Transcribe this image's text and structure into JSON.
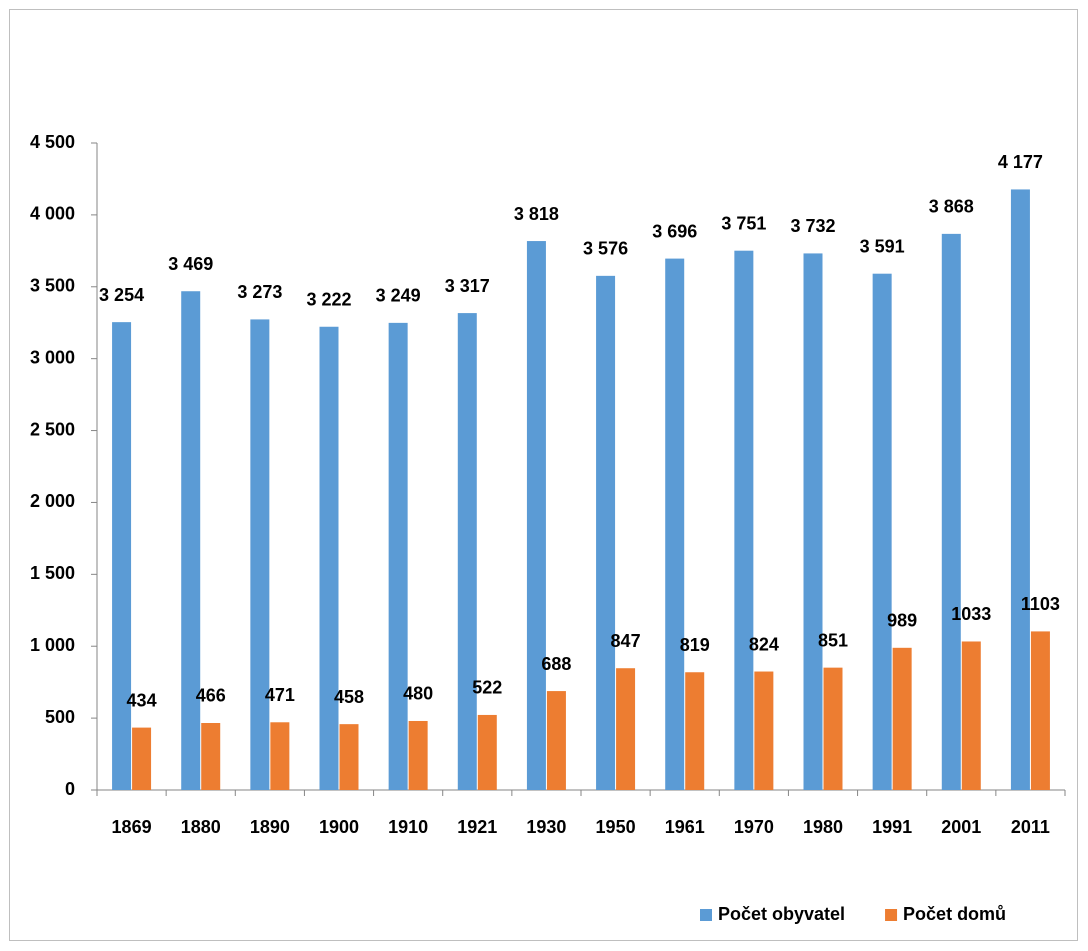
{
  "chart_data": {
    "type": "bar",
    "categories": [
      "1869",
      "1880",
      "1890",
      "1900",
      "1910",
      "1921",
      "1930",
      "1950",
      "1961",
      "1970",
      "1980",
      "1991",
      "2001",
      "2011"
    ],
    "series": [
      {
        "name": "Počet obyvatel",
        "color": "#5b9bd5",
        "values": [
          3254,
          3469,
          3273,
          3222,
          3249,
          3317,
          3818,
          3576,
          3696,
          3751,
          3732,
          3591,
          3868,
          4177
        ],
        "value_labels": [
          "3 254",
          "3 469",
          "3 273",
          "3 222",
          "3 249",
          "3 317",
          "3 818",
          "3 576",
          "3 696",
          "3 751",
          "3 732",
          "3 591",
          "3 868",
          "4 177"
        ]
      },
      {
        "name": "Počet domů",
        "color": "#ed7d31",
        "values": [
          434,
          466,
          471,
          458,
          480,
          522,
          688,
          847,
          819,
          824,
          851,
          989,
          1033,
          1103
        ]
      }
    ],
    "ylim": [
      0,
      4500
    ],
    "yticks": [
      0,
      500,
      {
        "value": 1000,
        "label": "1 000"
      },
      {
        "value": 1500,
        "label": "1 500"
      },
      {
        "value": 2000,
        "label": "2 000"
      },
      {
        "value": 2500,
        "label": "2 500"
      },
      {
        "value": 3000,
        "label": "3 000"
      },
      {
        "value": 3500,
        "label": "3 500"
      },
      {
        "value": 4000,
        "label": "4 000"
      },
      {
        "value": 4500,
        "label": "4 500"
      }
    ],
    "grid": false,
    "legend": "bottom-right"
  }
}
